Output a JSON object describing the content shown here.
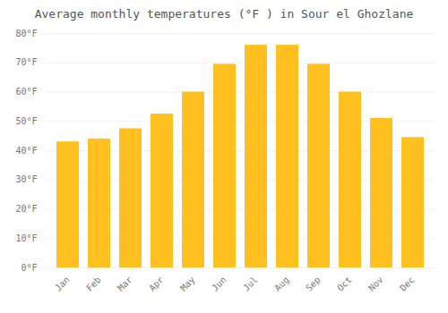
{
  "chart_data": {
    "type": "bar",
    "title": "Average monthly temperatures (°F ) in Sour el Ghozlane",
    "categories": [
      "Jan",
      "Feb",
      "Mar",
      "Apr",
      "May",
      "Jun",
      "Jul",
      "Aug",
      "Sep",
      "Oct",
      "Nov",
      "Dec"
    ],
    "values": [
      43,
      44,
      47.5,
      52.5,
      60,
      69.5,
      76,
      76,
      69.5,
      60,
      51,
      44.5
    ],
    "color": "#FFC020",
    "ylim": [
      0,
      80
    ],
    "yticks": [
      {
        "value": 0,
        "label": "0°F"
      },
      {
        "value": 10,
        "label": "10°F"
      },
      {
        "value": 20,
        "label": "20°F"
      },
      {
        "value": 30,
        "label": "30°F"
      },
      {
        "value": 40,
        "label": "40°F"
      },
      {
        "value": 50,
        "label": "50°F"
      },
      {
        "value": 60,
        "label": "60°F"
      },
      {
        "value": 70,
        "label": "70°F"
      },
      {
        "value": 80,
        "label": "80°F"
      }
    ],
    "grid": true
  }
}
